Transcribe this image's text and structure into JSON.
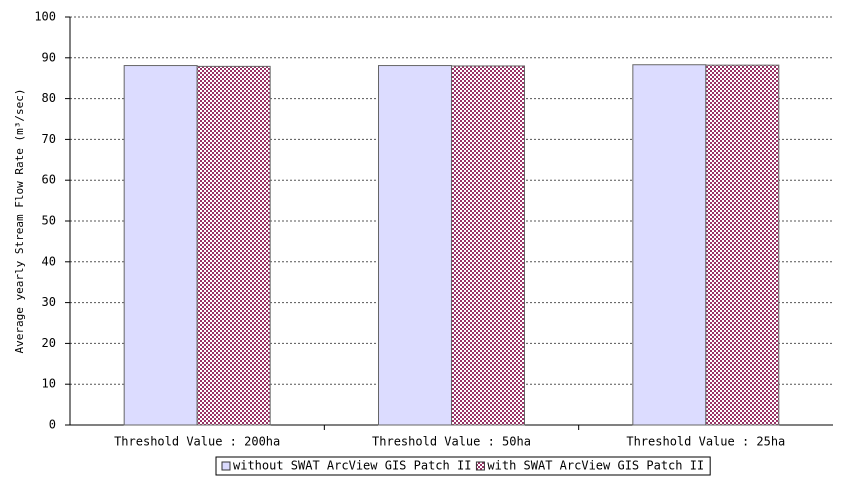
{
  "chart_data": {
    "type": "bar",
    "y_label": "Average yearly Stream Flow Rate (m³/sec)",
    "categories": [
      "Threshold Value : 200ha",
      "Threshold Value : 50ha",
      "Threshold Value : 25ha"
    ],
    "series": [
      {
        "name": "without SWAT ArcView GIS Patch II",
        "color": "#dcdcff",
        "values": [
          88.1,
          88.1,
          88.3
        ]
      },
      {
        "name": "with SWAT ArcView GIS Patch II",
        "color": "#993366",
        "values": [
          87.9,
          88.0,
          88.2
        ]
      }
    ],
    "ylim": [
      0,
      100
    ],
    "yticks": [
      0,
      10,
      20,
      30,
      40,
      50,
      60,
      70,
      80,
      90,
      100
    ],
    "grid": true,
    "legend": "bottom"
  }
}
